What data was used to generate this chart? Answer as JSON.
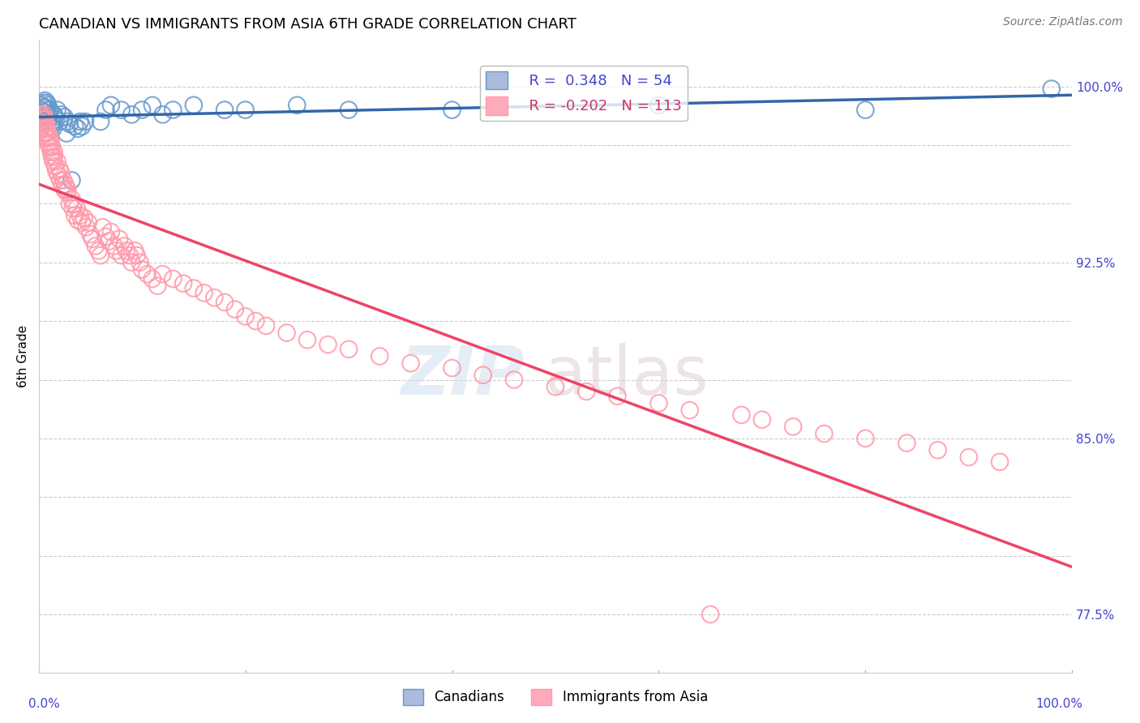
{
  "title": "CANADIAN VS IMMIGRANTS FROM ASIA 6TH GRADE CORRELATION CHART",
  "source": "Source: ZipAtlas.com",
  "ylabel": "6th Grade",
  "xlim": [
    0.0,
    1.0
  ],
  "ylim": [
    0.75,
    1.02
  ],
  "yticks": [
    0.775,
    0.8,
    0.825,
    0.85,
    0.875,
    0.9,
    0.925,
    0.95,
    0.975,
    1.0
  ],
  "ytick_labels": [
    "77.5%",
    "",
    "",
    "85.0%",
    "",
    "",
    "92.5%",
    "",
    "",
    "100.0%"
  ],
  "grid_color": "#cccccc",
  "background_color": "#ffffff",
  "canadians": {
    "color": "#6699cc",
    "R": 0.348,
    "N": 54,
    "label": "Canadians",
    "trend_color": "#3366aa",
    "x": [
      0.001,
      0.002,
      0.003,
      0.003,
      0.004,
      0.005,
      0.005,
      0.006,
      0.006,
      0.007,
      0.007,
      0.008,
      0.008,
      0.009,
      0.01,
      0.01,
      0.011,
      0.012,
      0.013,
      0.014,
      0.015,
      0.016,
      0.017,
      0.018,
      0.02,
      0.022,
      0.025,
      0.027,
      0.028,
      0.03,
      0.032,
      0.035,
      0.038,
      0.04,
      0.042,
      0.045,
      0.06,
      0.065,
      0.07,
      0.08,
      0.09,
      0.1,
      0.11,
      0.12,
      0.13,
      0.15,
      0.18,
      0.2,
      0.25,
      0.3,
      0.4,
      0.6,
      0.8,
      0.98
    ],
    "y": [
      0.985,
      0.99,
      0.988,
      0.992,
      0.987,
      0.991,
      0.993,
      0.989,
      0.994,
      0.988,
      0.991,
      0.99,
      0.993,
      0.992,
      0.988,
      0.986,
      0.99,
      0.983,
      0.985,
      0.982,
      0.988,
      0.987,
      0.986,
      0.99,
      0.985,
      0.988,
      0.987,
      0.98,
      0.985,
      0.984,
      0.96,
      0.983,
      0.982,
      0.985,
      0.983,
      0.985,
      0.985,
      0.99,
      0.992,
      0.99,
      0.988,
      0.99,
      0.992,
      0.988,
      0.99,
      0.992,
      0.99,
      0.99,
      0.992,
      0.99,
      0.99,
      0.992,
      0.99,
      0.999
    ]
  },
  "immigrants": {
    "color": "#ff99aa",
    "R": -0.202,
    "N": 113,
    "label": "Immigrants from Asia",
    "trend_color": "#ee4466",
    "x": [
      0.001,
      0.002,
      0.002,
      0.003,
      0.003,
      0.004,
      0.004,
      0.005,
      0.005,
      0.005,
      0.006,
      0.006,
      0.007,
      0.007,
      0.008,
      0.008,
      0.009,
      0.009,
      0.01,
      0.01,
      0.011,
      0.011,
      0.012,
      0.012,
      0.013,
      0.013,
      0.014,
      0.015,
      0.015,
      0.016,
      0.017,
      0.018,
      0.019,
      0.02,
      0.021,
      0.022,
      0.023,
      0.024,
      0.025,
      0.026,
      0.027,
      0.028,
      0.03,
      0.032,
      0.033,
      0.034,
      0.035,
      0.037,
      0.038,
      0.04,
      0.042,
      0.044,
      0.046,
      0.048,
      0.05,
      0.052,
      0.055,
      0.058,
      0.06,
      0.062,
      0.065,
      0.068,
      0.07,
      0.073,
      0.075,
      0.078,
      0.08,
      0.083,
      0.085,
      0.088,
      0.09,
      0.093,
      0.095,
      0.098,
      0.1,
      0.105,
      0.11,
      0.115,
      0.12,
      0.13,
      0.14,
      0.15,
      0.16,
      0.17,
      0.18,
      0.19,
      0.2,
      0.21,
      0.22,
      0.24,
      0.26,
      0.28,
      0.3,
      0.33,
      0.36,
      0.4,
      0.43,
      0.46,
      0.5,
      0.53,
      0.56,
      0.6,
      0.63,
      0.65,
      0.68,
      0.7,
      0.73,
      0.76,
      0.8,
      0.84,
      0.87,
      0.9,
      0.93
    ],
    "y": [
      0.985,
      0.988,
      0.982,
      0.984,
      0.986,
      0.983,
      0.987,
      0.98,
      0.984,
      0.988,
      0.982,
      0.986,
      0.98,
      0.984,
      0.978,
      0.982,
      0.976,
      0.98,
      0.975,
      0.979,
      0.974,
      0.978,
      0.972,
      0.976,
      0.97,
      0.974,
      0.968,
      0.97,
      0.972,
      0.966,
      0.964,
      0.968,
      0.962,
      0.965,
      0.96,
      0.963,
      0.958,
      0.96,
      0.956,
      0.958,
      0.955,
      0.956,
      0.95,
      0.952,
      0.948,
      0.95,
      0.945,
      0.948,
      0.943,
      0.945,
      0.942,
      0.944,
      0.94,
      0.942,
      0.937,
      0.935,
      0.932,
      0.93,
      0.928,
      0.94,
      0.936,
      0.934,
      0.938,
      0.932,
      0.93,
      0.935,
      0.928,
      0.932,
      0.93,
      0.928,
      0.925,
      0.93,
      0.928,
      0.925,
      0.922,
      0.92,
      0.918,
      0.915,
      0.92,
      0.918,
      0.916,
      0.914,
      0.912,
      0.91,
      0.908,
      0.905,
      0.902,
      0.9,
      0.898,
      0.895,
      0.892,
      0.89,
      0.888,
      0.885,
      0.882,
      0.88,
      0.877,
      0.875,
      0.872,
      0.87,
      0.868,
      0.865,
      0.862,
      0.775,
      0.86,
      0.858,
      0.855,
      0.852,
      0.85,
      0.848,
      0.845,
      0.842,
      0.84
    ]
  },
  "watermark_zip": "ZIP",
  "watermark_atlas": "atlas",
  "legend_box_color_canadian": "#aabbdd",
  "legend_box_color_immigrant": "#ffaabb"
}
